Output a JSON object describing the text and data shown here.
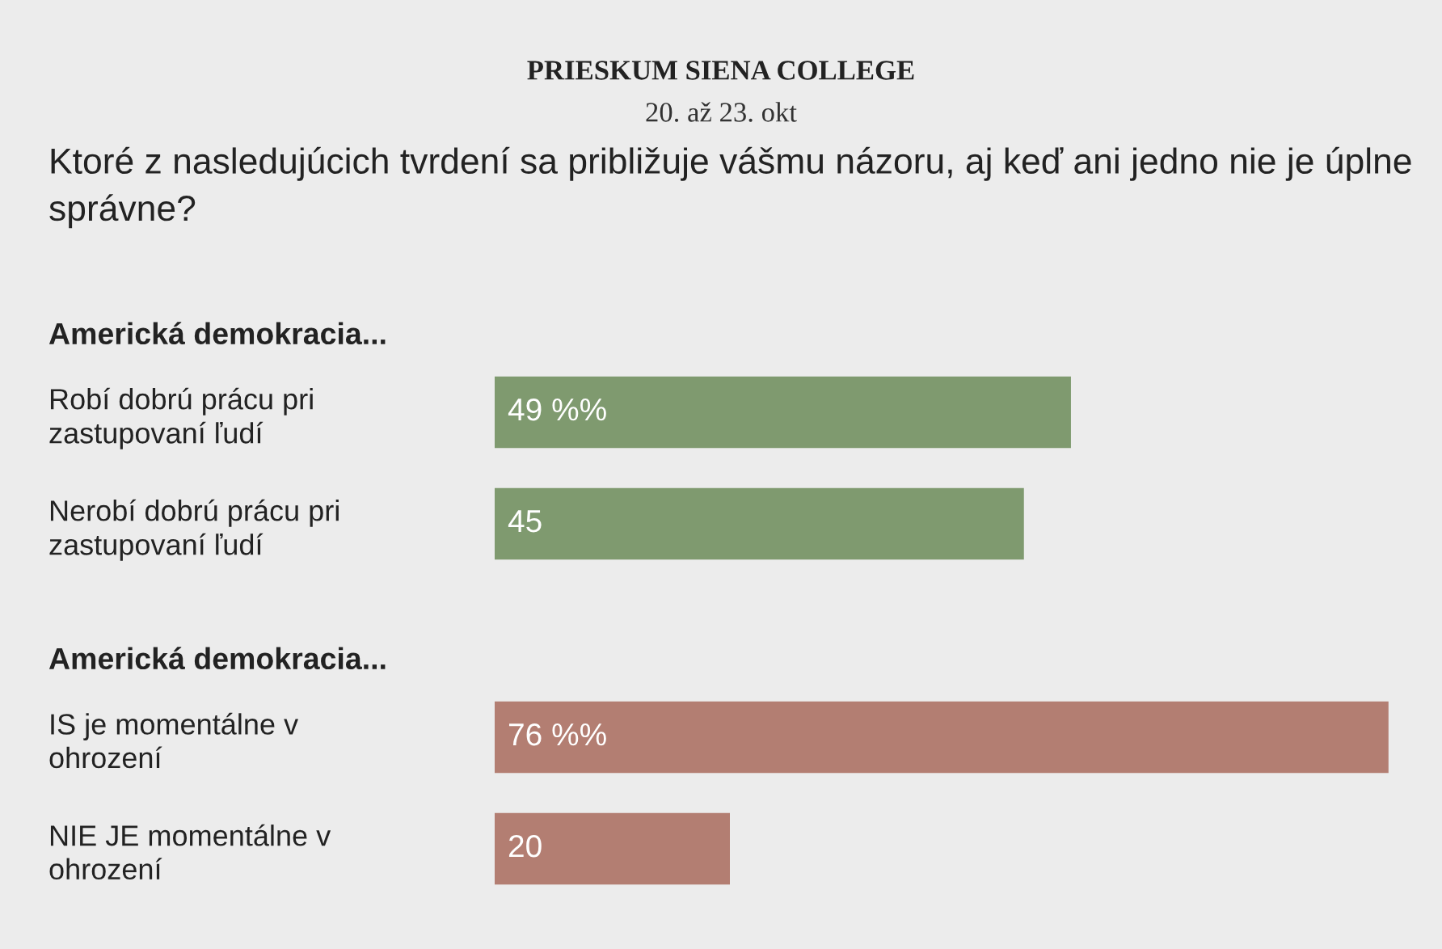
{
  "chart_data": [
    {
      "type": "bar",
      "orientation": "horizontal",
      "title": "PRIESKUM SIENA COLLEGE",
      "subtitle": "20. až 23. okt",
      "annotations": [
        "Ktoré z nasledujúcich tvrdení sa približuje vášmu názoru, aj keď ani jedno nie je úplne správne?",
        "Americká demokracia..."
      ],
      "categories": [
        "Robí dobrú prácu pri\nzastupovaní ľudí",
        "Nerobí dobrú prácu pri\nzastupovaní ľudí"
      ],
      "series": [
        {
          "color": "#7f9a6f",
          "values": [
            49,
            45
          ],
          "value_labels": [
            "49 %%",
            "45"
          ]
        }
      ],
      "xlim": [
        0,
        80
      ],
      "tick_labels": "y"
    },
    {
      "type": "bar",
      "orientation": "horizontal",
      "title": "Americká demokracia...",
      "categories": [
        "IS je momentálne v\nohrození",
        "NIE JE momentálne v\nohrození"
      ],
      "series": [
        {
          "color": "#b37e72",
          "values": [
            76,
            20
          ],
          "value_labels": [
            "76 %%",
            "20"
          ]
        }
      ],
      "xlim": [
        0,
        80
      ],
      "tick_labels": "y"
    }
  ]
}
